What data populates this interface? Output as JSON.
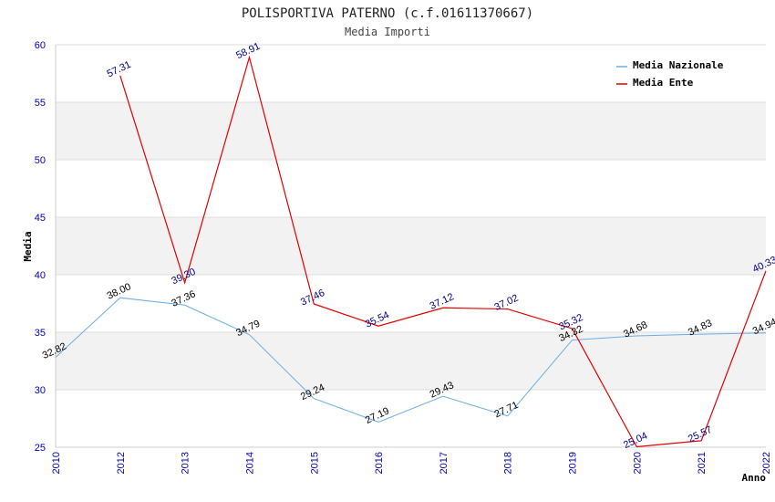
{
  "chart_data": {
    "type": "line",
    "title": "POLISPORTIVA PATERNO (c.f.01611370667)",
    "subtitle": "Media Importi",
    "ylabel": "Media",
    "xlabel": "Anno",
    "ylim": [
      25,
      60
    ],
    "yticks": [
      "25",
      "30",
      "35",
      "40",
      "45",
      "50",
      "55",
      "60"
    ],
    "categories": [
      "2010",
      "2012",
      "2013",
      "2014",
      "2015",
      "2016",
      "2017",
      "2018",
      "2019",
      "2020",
      "2021",
      "2022"
    ],
    "legend_position": "top-right",
    "series": [
      {
        "name": "Media Nazionale",
        "color": "#6aaee6",
        "values": [
          32.82,
          38.0,
          37.36,
          34.79,
          29.24,
          27.19,
          29.43,
          27.71,
          34.32,
          34.68,
          34.83,
          34.94
        ],
        "labels": [
          "32.82",
          "38.00",
          "37.36",
          "34.79",
          "29.24",
          "27.19",
          "29.43",
          "27.71",
          "34.32",
          "34.68",
          "34.83",
          "34.94"
        ]
      },
      {
        "name": "Media Ente",
        "color": "#e00000",
        "values": [
          null,
          57.31,
          39.3,
          58.91,
          37.46,
          35.54,
          37.12,
          37.02,
          35.32,
          25.04,
          25.57,
          40.33
        ],
        "labels": [
          null,
          "57.31",
          "39.30",
          "58.91",
          "37.46",
          "35.54",
          "37.12",
          "37.02",
          "35.32",
          "25.04",
          "25.57",
          "40.33"
        ]
      }
    ]
  }
}
